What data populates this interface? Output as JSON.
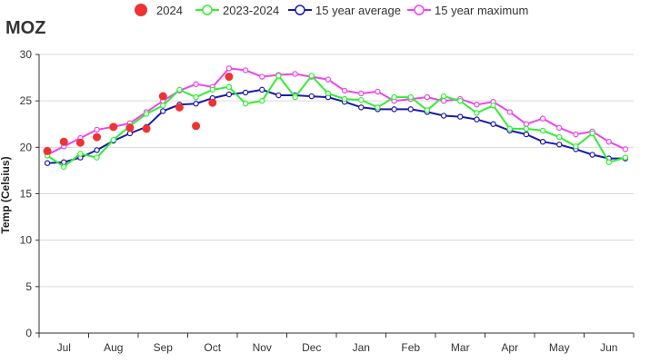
{
  "chart_data": {
    "type": "line",
    "title": "MOZ",
    "ylabel": "Temp (Celsius)",
    "xlabel": "",
    "ylim": [
      0,
      30
    ],
    "yticks": [
      0,
      5,
      10,
      15,
      20,
      25,
      30
    ],
    "grid": true,
    "legend_position": "top",
    "month_labels": [
      "Jul",
      "Aug",
      "Sep",
      "Oct",
      "Nov",
      "Dec",
      "Jan",
      "Feb",
      "Mar",
      "Apr",
      "May",
      "Jun"
    ],
    "series": [
      {
        "name": "2024",
        "style": "dot",
        "color": "#ee3333",
        "values": [
          19.6,
          20.6,
          20.5,
          21.1,
          22.2,
          22.1,
          22.0,
          25.5,
          24.3,
          22.3,
          24.8,
          27.6
        ]
      },
      {
        "name": "2023-2024",
        "style": "line",
        "color": "#33ee33",
        "values": [
          19.1,
          17.9,
          19.3,
          18.9,
          20.8,
          22.3,
          23.6,
          24.5,
          26.2,
          25.4,
          26.2,
          26.5,
          24.7,
          25.0,
          27.7,
          25.4,
          27.7,
          25.8,
          25.2,
          25.1,
          24.3,
          25.4,
          25.4,
          24.0,
          25.5,
          25.0,
          23.7,
          24.5,
          22.0,
          22.0,
          21.8,
          21.1,
          20.1,
          21.5,
          18.4,
          18.9
        ]
      },
      {
        "name": "15 year average",
        "style": "line",
        "color": "#1a1aaa",
        "values": [
          18.3,
          18.4,
          18.9,
          19.7,
          20.7,
          21.5,
          22.2,
          23.9,
          24.6,
          24.7,
          25.3,
          25.7,
          25.9,
          26.2,
          25.6,
          25.6,
          25.5,
          25.4,
          24.9,
          24.3,
          24.1,
          24.1,
          24.1,
          23.8,
          23.4,
          23.3,
          23.0,
          22.5,
          21.8,
          21.4,
          20.6,
          20.3,
          19.8,
          19.2,
          18.8,
          18.8
        ]
      },
      {
        "name": "15 year maximum",
        "style": "line",
        "color": "#ee44ee",
        "values": [
          19.2,
          20.1,
          21.0,
          21.9,
          22.2,
          22.6,
          23.8,
          25.0,
          26.1,
          26.8,
          26.5,
          28.5,
          28.3,
          27.6,
          27.8,
          27.9,
          27.6,
          27.3,
          26.1,
          25.8,
          26.0,
          25.0,
          25.2,
          25.4,
          25.0,
          25.2,
          24.6,
          24.9,
          23.8,
          22.5,
          23.1,
          22.1,
          21.4,
          21.7,
          20.6,
          19.8
        ]
      }
    ]
  }
}
